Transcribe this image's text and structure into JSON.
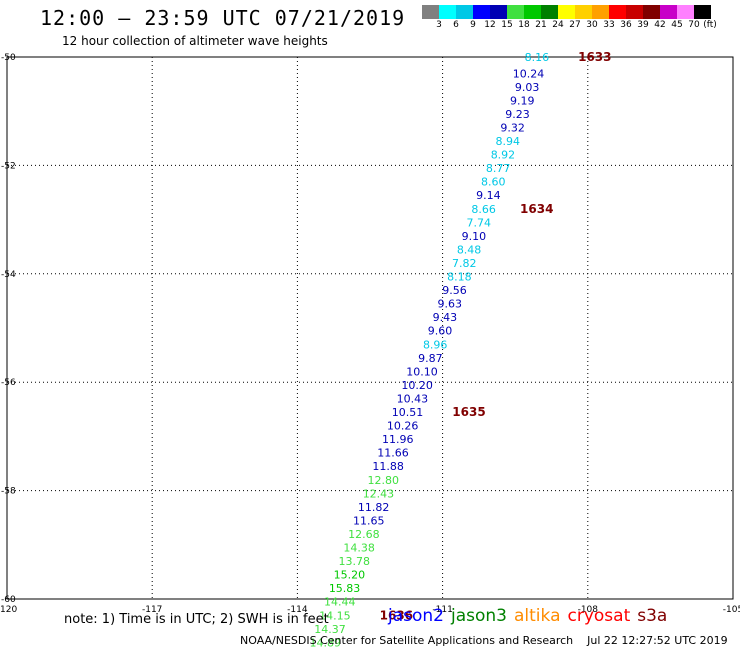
{
  "header": {
    "title": "12:00 – 23:59 UTC 07/21/2019",
    "subtitle": "12 hour collection of altimeter wave heights"
  },
  "legend": {
    "colors": [
      "#808080",
      "#00ffff",
      "#00c8e6",
      "#0000ff",
      "#0000b4",
      "#40e040",
      "#00c800",
      "#008000",
      "#ffff00",
      "#ffd000",
      "#ffa000",
      "#ff0000",
      "#c80000",
      "#800000",
      "#c800c8",
      "#ff80ff",
      "#000000"
    ],
    "labels": [
      "3",
      "6",
      "9",
      "12",
      "15",
      "18",
      "21",
      "24",
      "27",
      "30",
      "33",
      "36",
      "39",
      "42",
      "45",
      "70",
      "(ft)"
    ]
  },
  "chart_data": {
    "type": "scatter",
    "xlim": [
      -120,
      -105
    ],
    "ylim": [
      -60,
      -50
    ],
    "x_ticks": [
      "-120",
      "-117",
      "-114",
      "-111",
      "-108",
      "-105"
    ],
    "y_ticks": [
      "-50",
      "-52",
      "-54",
      "-56",
      "-58",
      "-60"
    ],
    "grid": true,
    "series": [
      {
        "name": "jason2",
        "color": "#0000ff"
      },
      {
        "name": "jason3",
        "color": "#008000"
      },
      {
        "name": "altika",
        "color": "#ff8c00"
      },
      {
        "name": "cryosat",
        "color": "#ff0000"
      },
      {
        "name": "s3a",
        "color": "#800000"
      }
    ],
    "points": [
      {
        "lon": -108.8,
        "lat": -50.0,
        "value": "8.16",
        "color": "#00c8e6"
      },
      {
        "lon": -108.9,
        "lat": -50.3,
        "value": "10.24",
        "color": "#0000b4"
      },
      {
        "lon": -109.0,
        "lat": -50.55,
        "value": "9.03",
        "color": "#0000b4"
      },
      {
        "lon": -109.1,
        "lat": -50.8,
        "value": "9.19",
        "color": "#0000b4"
      },
      {
        "lon": -109.2,
        "lat": -51.05,
        "value": "9.23",
        "color": "#0000b4"
      },
      {
        "lon": -109.3,
        "lat": -51.3,
        "value": "9.32",
        "color": "#0000b4"
      },
      {
        "lon": -109.4,
        "lat": -51.55,
        "value": "8.94",
        "color": "#00c8e6"
      },
      {
        "lon": -109.5,
        "lat": -51.8,
        "value": "8.92",
        "color": "#00c8e6"
      },
      {
        "lon": -109.6,
        "lat": -52.05,
        "value": "8.77",
        "color": "#00c8e6"
      },
      {
        "lon": -109.7,
        "lat": -52.3,
        "value": "8.60",
        "color": "#00c8e6"
      },
      {
        "lon": -109.8,
        "lat": -52.55,
        "value": "9.14",
        "color": "#0000b4"
      },
      {
        "lon": -109.9,
        "lat": -52.8,
        "value": "8.66",
        "color": "#00c8e6"
      },
      {
        "lon": -110.0,
        "lat": -53.05,
        "value": "7.74",
        "color": "#00c8e6"
      },
      {
        "lon": -110.1,
        "lat": -53.3,
        "value": "9.10",
        "color": "#0000b4"
      },
      {
        "lon": -110.2,
        "lat": -53.55,
        "value": "8.48",
        "color": "#00c8e6"
      },
      {
        "lon": -110.3,
        "lat": -53.8,
        "value": "7.82",
        "color": "#00c8e6"
      },
      {
        "lon": -110.4,
        "lat": -54.05,
        "value": "8.18",
        "color": "#00c8e6"
      },
      {
        "lon": -110.5,
        "lat": -54.3,
        "value": "9.56",
        "color": "#0000b4"
      },
      {
        "lon": -110.6,
        "lat": -54.55,
        "value": "9.63",
        "color": "#0000b4"
      },
      {
        "lon": -110.7,
        "lat": -54.8,
        "value": "9.43",
        "color": "#0000b4"
      },
      {
        "lon": -110.8,
        "lat": -55.05,
        "value": "9.60",
        "color": "#0000b4"
      },
      {
        "lon": -110.9,
        "lat": -55.3,
        "value": "8.96",
        "color": "#00c8e6"
      },
      {
        "lon": -111.0,
        "lat": -55.55,
        "value": "9.87",
        "color": "#0000b4"
      },
      {
        "lon": -111.1,
        "lat": -55.8,
        "value": "10.10",
        "color": "#0000b4"
      },
      {
        "lon": -111.2,
        "lat": -56.05,
        "value": "10.20",
        "color": "#0000b4"
      },
      {
        "lon": -111.3,
        "lat": -56.3,
        "value": "10.43",
        "color": "#0000b4"
      },
      {
        "lon": -111.4,
        "lat": -56.55,
        "value": "10.51",
        "color": "#0000b4"
      },
      {
        "lon": -111.5,
        "lat": -56.8,
        "value": "10.26",
        "color": "#0000b4"
      },
      {
        "lon": -111.6,
        "lat": -57.05,
        "value": "11.96",
        "color": "#0000b4"
      },
      {
        "lon": -111.7,
        "lat": -57.3,
        "value": "11.66",
        "color": "#0000b4"
      },
      {
        "lon": -111.8,
        "lat": -57.55,
        "value": "11.88",
        "color": "#0000b4"
      },
      {
        "lon": -111.9,
        "lat": -57.8,
        "value": "12.80",
        "color": "#40e040"
      },
      {
        "lon": -112.0,
        "lat": -58.05,
        "value": "12.43",
        "color": "#40e040"
      },
      {
        "lon": -112.1,
        "lat": -58.3,
        "value": "11.82",
        "color": "#0000b4"
      },
      {
        "lon": -112.2,
        "lat": -58.55,
        "value": "11.65",
        "color": "#0000b4"
      },
      {
        "lon": -112.3,
        "lat": -58.8,
        "value": "12.68",
        "color": "#40e040"
      },
      {
        "lon": -112.4,
        "lat": -59.05,
        "value": "14.38",
        "color": "#40e040"
      },
      {
        "lon": -112.5,
        "lat": -59.3,
        "value": "13.78",
        "color": "#40e040"
      },
      {
        "lon": -112.6,
        "lat": -59.55,
        "value": "15.20",
        "color": "#00c800"
      },
      {
        "lon": -112.7,
        "lat": -59.8,
        "value": "15.83",
        "color": "#00c800"
      },
      {
        "lon": -112.8,
        "lat": -60.05,
        "value": "14.44",
        "color": "#40e040"
      },
      {
        "lon": -112.9,
        "lat": -60.3,
        "value": "14.15",
        "color": "#40e040"
      },
      {
        "lon": -113.0,
        "lat": -60.55,
        "value": "14.37",
        "color": "#40e040"
      },
      {
        "lon": -113.1,
        "lat": -60.8,
        "value": "14.89",
        "color": "#40e040"
      }
    ],
    "annotations": [
      {
        "text": "1633",
        "lon": -108.2,
        "lat": -50.0,
        "color": "#800000"
      },
      {
        "text": "1634",
        "lon": -109.4,
        "lat": -52.8,
        "color": "#800000"
      },
      {
        "text": "1635",
        "lon": -110.8,
        "lat": -56.55,
        "color": "#800000"
      },
      {
        "text": "1636",
        "lon": -112.3,
        "lat": -60.3,
        "color": "#800000"
      }
    ]
  },
  "footer": {
    "note": "note: 1) Time is in UTC; 2) SWH is in feet",
    "credit": "NOAA/NESDIS Center for Satellite Applications and Research",
    "timestamp": "Jul 22 12:27:52 UTC 2019"
  }
}
